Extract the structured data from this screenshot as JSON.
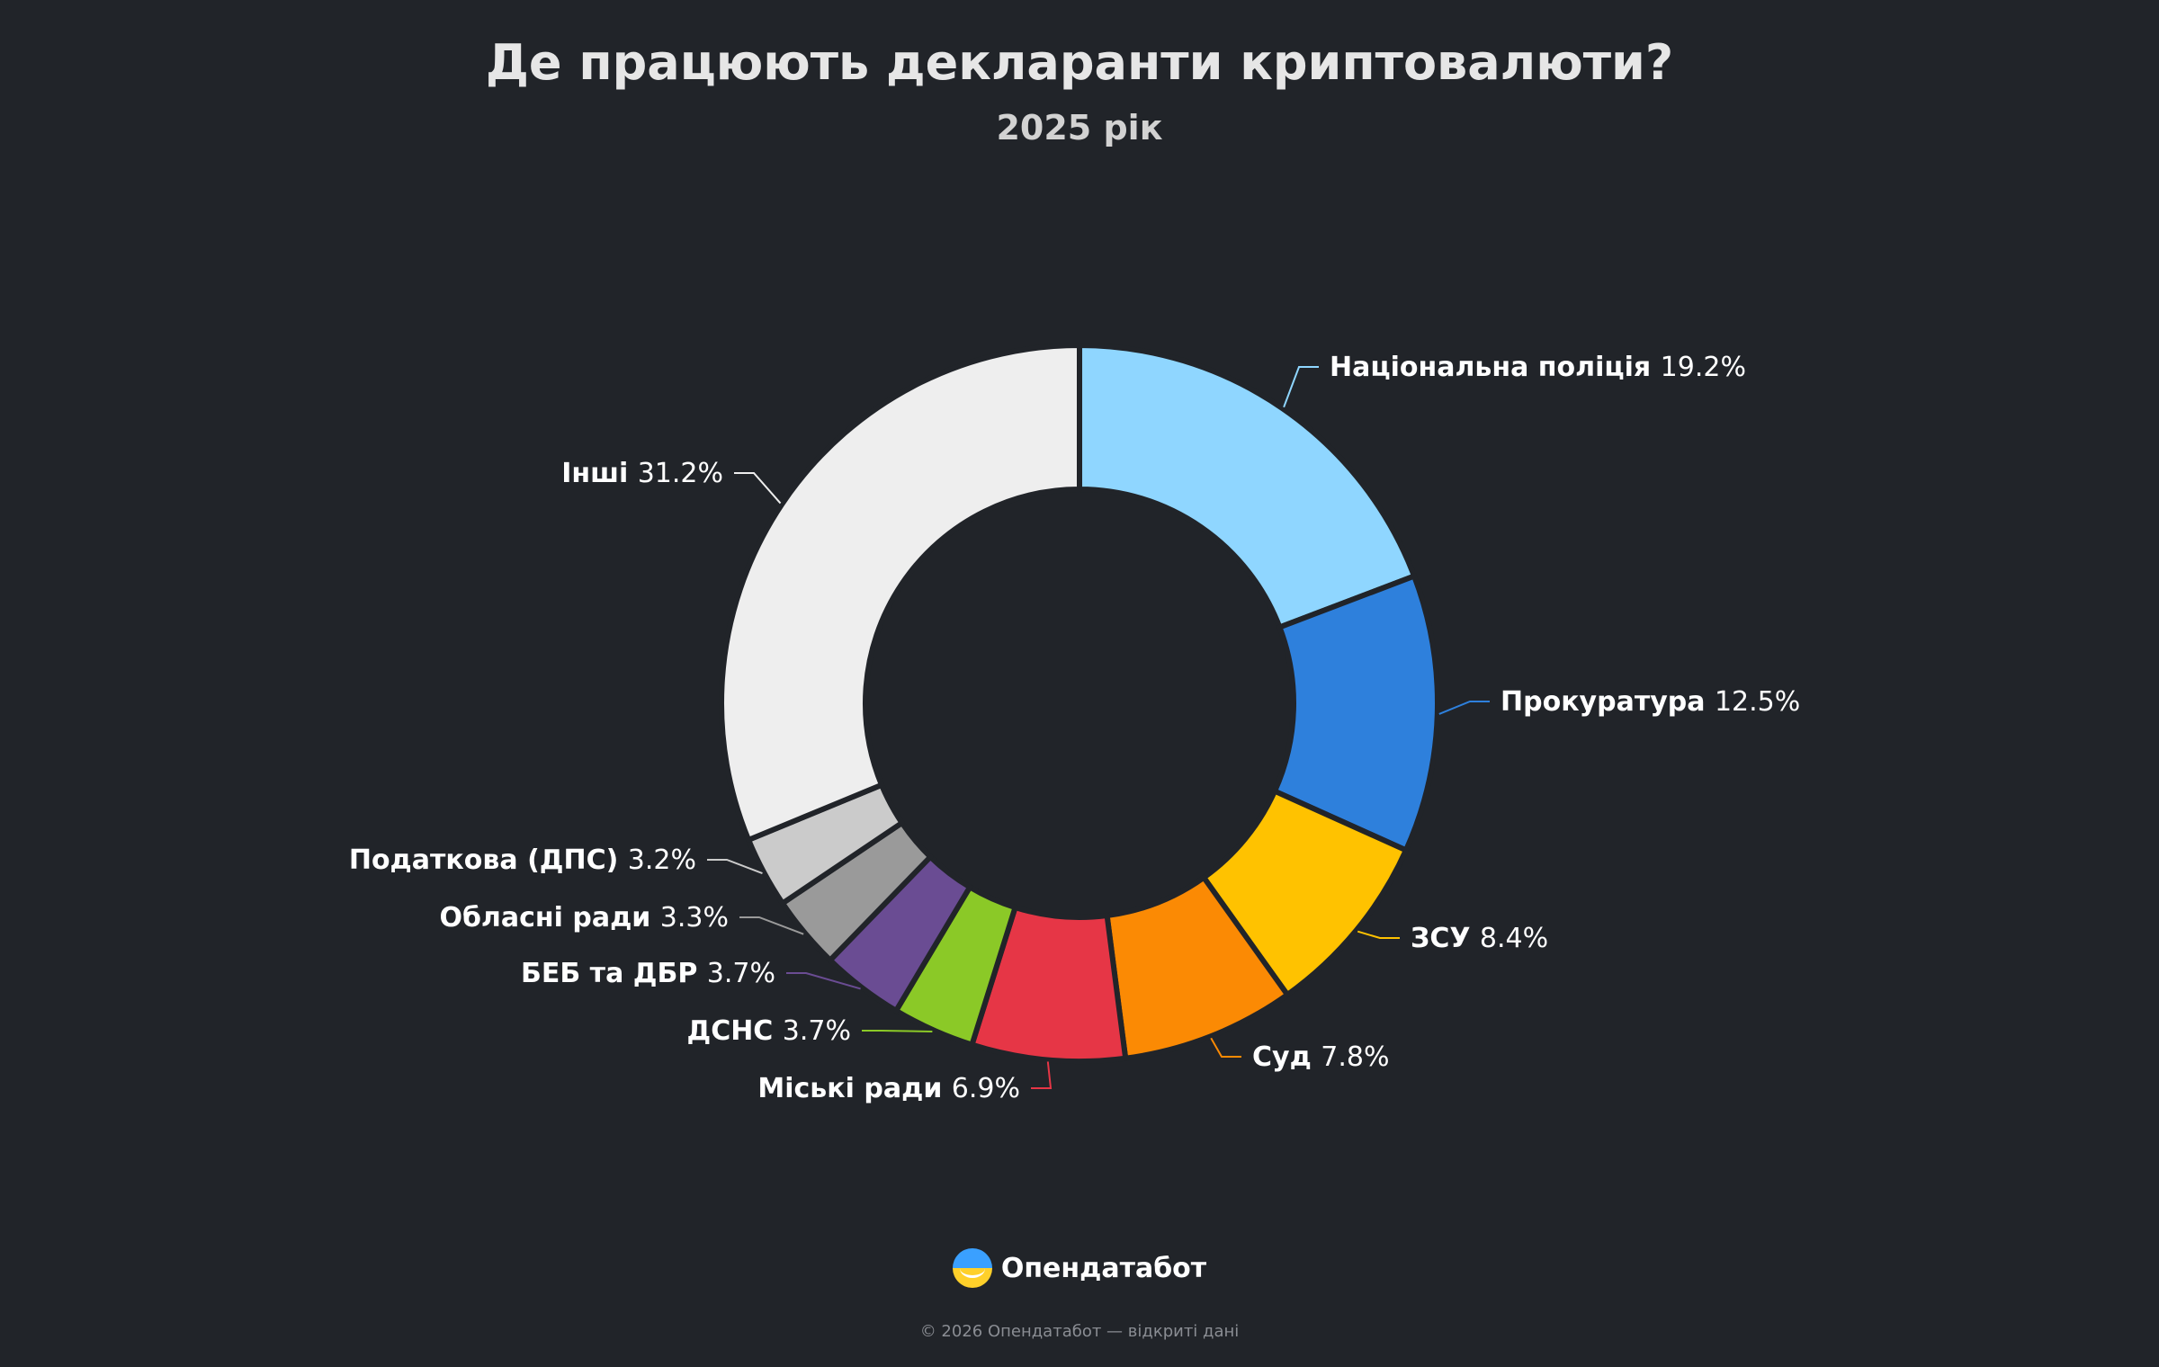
{
  "title": "Де працюють декларанти криптовалюти?",
  "subtitle": "2025 рік",
  "brand": {
    "name": "Опендатабот",
    "logo_icon": "opendatabot-logo-icon"
  },
  "footer": "© 2026 Опендатабот — відкриті дані",
  "chart_data": {
    "type": "pie",
    "variant": "donut",
    "title": "Де працюють декларанти криптовалюти?",
    "subtitle": "2025 рік",
    "unit": "%",
    "slices": [
      {
        "label": "Національна поліція",
        "value": 19.2,
        "display": "19.2%",
        "color": "#8fd6ff"
      },
      {
        "label": "Прокуратура",
        "value": 12.5,
        "display": "12.5%",
        "color": "#2e80dc"
      },
      {
        "label": "ЗСУ",
        "value": 8.4,
        "display": "8.4%",
        "color": "#ffc200"
      },
      {
        "label": "Суд",
        "value": 7.8,
        "display": "7.8%",
        "color": "#fb8a04"
      },
      {
        "label": "Міські ради",
        "value": 6.9,
        "display": "6.9%",
        "color": "#e63646"
      },
      {
        "label": "ДСНС",
        "value": 3.7,
        "display": "3.7%",
        "color": "#8bc927"
      },
      {
        "label": "БЕБ та ДБР",
        "value": 3.7,
        "display": "3.7%",
        "color": "#6a4c93"
      },
      {
        "label": "Обласні ради",
        "value": 3.3,
        "display": "3.3%",
        "color": "#9a9a9a"
      },
      {
        "label": "Податкова (ДПС)",
        "value": 3.2,
        "display": "3.2%",
        "color": "#cbcbcb"
      },
      {
        "label": "Інші",
        "value": 31.2,
        "display": "31.2%",
        "color": "#eeeeee"
      }
    ]
  }
}
